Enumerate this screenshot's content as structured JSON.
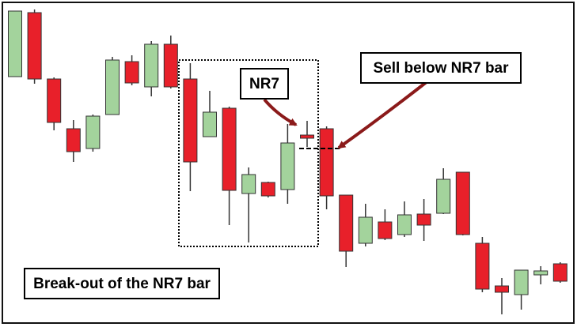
{
  "chart_data": {
    "type": "candlestick",
    "open": [
      303,
      384,
      300,
      237,
      212,
      255,
      322,
      290,
      344,
      300,
      227,
      263,
      155,
      169,
      160,
      229,
      237,
      153,
      92,
      119,
      103,
      129,
      130,
      182,
      92,
      38,
      27,
      52,
      66
    ],
    "high": [
      386,
      388,
      302,
      248,
      255,
      328,
      330,
      348,
      355,
      320,
      285,
      265,
      188,
      170,
      243,
      247,
      240,
      153,
      142,
      135,
      145,
      148,
      187,
      182,
      100,
      48,
      58,
      63,
      68
    ],
    "low": [
      303,
      294,
      235,
      195,
      208,
      255,
      292,
      278,
      288,
      158,
      227,
      115,
      93,
      150,
      142,
      214,
      135,
      62,
      88,
      96,
      100,
      95,
      129,
      102,
      30,
      2,
      8,
      40,
      42
    ],
    "close": [
      386,
      300,
      245,
      208,
      253,
      324,
      295,
      344,
      290,
      195,
      258,
      159,
      179,
      152,
      219,
      225,
      152,
      82,
      125,
      98,
      128,
      115,
      173,
      103,
      34,
      30,
      58,
      57,
      44
    ],
    "up_color": "#a3d39c",
    "down_color": "#e8202a",
    "ylim": [
      0,
      395
    ],
    "annotations": [
      "NR7",
      "Sell below NR7 bar",
      "Break-out of the NR7 bar"
    ]
  }
}
